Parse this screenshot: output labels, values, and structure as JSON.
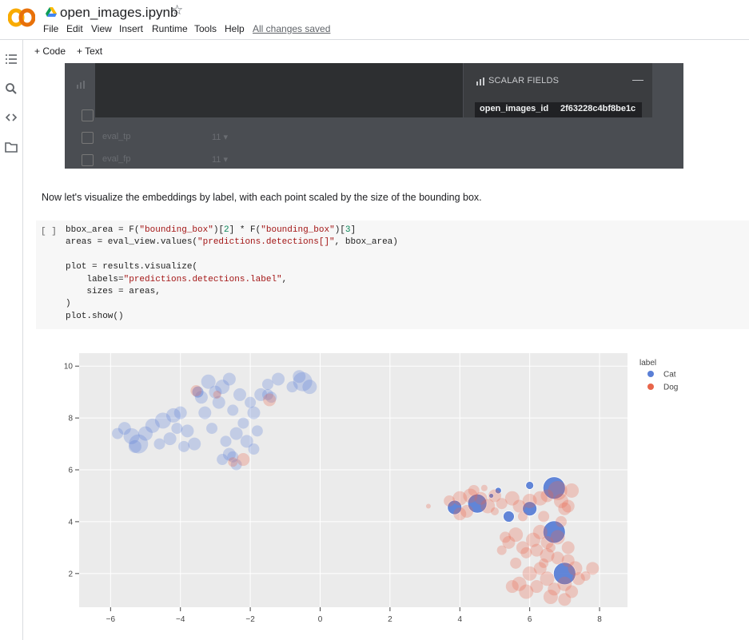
{
  "header": {
    "title": "open_images.ipynb",
    "menu": [
      "File",
      "Edit",
      "View",
      "Insert",
      "Runtime",
      "Tools",
      "Help"
    ],
    "saved_status": "All changes saved"
  },
  "toolbar": {
    "code_label": "+ Code",
    "text_label": "+ Text"
  },
  "sidebar": {
    "icons": [
      "toc-icon",
      "search-icon",
      "code-snippets-icon",
      "files-icon"
    ]
  },
  "output_panel": {
    "scalar_title": "SCALAR FIELDS",
    "scalar_key": "open_images_id",
    "scalar_value": "2f63228c4bf8be1c",
    "fields": [
      {
        "name": "eval_tp",
        "count": "11 ▾"
      },
      {
        "name": "eval_fp",
        "count": "11 ▾"
      }
    ]
  },
  "markdown": {
    "text": "Now let's visualize the embeddings by label, with each point scaled by the size of the bounding box."
  },
  "code_cell": {
    "exec_count": "[ ]",
    "lines": [
      "bbox_area = F(\"bounding_box\")[2] * F(\"bounding_box\")[3]",
      "areas = eval_view.values(\"predictions.detections[]\", bbox_area)",
      "",
      "plot = results.visualize(",
      "    labels=\"predictions.detections.label\",",
      "    sizes = areas,",
      ")",
      "plot.show()"
    ]
  },
  "chart_data": {
    "type": "scatter",
    "xlim": [
      -6.9,
      8.8
    ],
    "ylim": [
      0.7,
      10.5
    ],
    "xticks": [
      -6,
      -4,
      -2,
      0,
      2,
      4,
      6,
      8
    ],
    "yticks": [
      2,
      4,
      6,
      8,
      10
    ],
    "grid": true,
    "legend": {
      "title": "label",
      "placement": "top-right"
    },
    "series": [
      {
        "name": "Cat",
        "color": "#5a7fd6",
        "points": [
          [
            -5.4,
            7.3,
            10
          ],
          [
            -5.2,
            7.0,
            12
          ],
          [
            -5.0,
            7.4,
            9
          ],
          [
            -5.6,
            7.6,
            8
          ],
          [
            -4.8,
            7.7,
            9
          ],
          [
            -4.5,
            7.9,
            10
          ],
          [
            -4.2,
            8.1,
            9
          ],
          [
            -4.0,
            8.2,
            8
          ],
          [
            -4.3,
            7.2,
            8
          ],
          [
            -4.6,
            7.0,
            7
          ],
          [
            -5.8,
            7.4,
            7
          ],
          [
            -5.3,
            6.9,
            8
          ],
          [
            -3.8,
            7.5,
            8
          ],
          [
            -3.6,
            7.0,
            8
          ],
          [
            -3.9,
            6.9,
            7
          ],
          [
            -4.1,
            7.6,
            7
          ],
          [
            -3.4,
            8.8,
            8
          ],
          [
            -3.2,
            9.4,
            9
          ],
          [
            -3.0,
            9.0,
            8
          ],
          [
            -2.8,
            9.2,
            9
          ],
          [
            -2.6,
            9.5,
            8
          ],
          [
            -3.5,
            9.0,
            7
          ],
          [
            -2.9,
            8.6,
            8
          ],
          [
            -2.5,
            8.3,
            7
          ],
          [
            -2.3,
            8.9,
            8
          ],
          [
            -2.0,
            8.6,
            7
          ],
          [
            -1.7,
            8.9,
            8
          ],
          [
            -1.5,
            9.3,
            7
          ],
          [
            -1.2,
            9.5,
            8
          ],
          [
            -0.8,
            9.2,
            7
          ],
          [
            -0.5,
            9.4,
            12
          ],
          [
            -0.3,
            9.2,
            9
          ],
          [
            -0.6,
            9.6,
            8
          ],
          [
            -1.4,
            8.8,
            7
          ],
          [
            -1.9,
            8.2,
            8
          ],
          [
            -2.2,
            7.8,
            7
          ],
          [
            -2.4,
            7.4,
            8
          ],
          [
            -2.7,
            7.1,
            7
          ],
          [
            -3.1,
            7.6,
            7
          ],
          [
            -3.3,
            8.2,
            8
          ],
          [
            -2.6,
            6.6,
            8
          ],
          [
            -2.4,
            6.2,
            7
          ],
          [
            -2.8,
            6.4,
            7
          ],
          [
            -2.1,
            7.1,
            8
          ],
          [
            -1.9,
            6.8,
            7
          ],
          [
            -1.8,
            7.5,
            7
          ],
          [
            -3.5,
            9.0,
            7
          ],
          [
            -2.5,
            6.5,
            7
          ],
          [
            -1.5,
            8.9,
            7
          ],
          [
            4.5,
            4.7,
            12
          ],
          [
            6.7,
            5.3,
            14
          ],
          [
            6.7,
            3.6,
            14
          ],
          [
            7.0,
            2.0,
            14
          ],
          [
            6.0,
            4.5,
            9
          ],
          [
            5.4,
            4.2,
            7
          ],
          [
            3.85,
            4.55,
            9
          ],
          [
            6.0,
            5.4,
            5
          ],
          [
            5.1,
            5.2,
            4
          ],
          [
            4.9,
            5.0,
            3
          ]
        ]
      },
      {
        "name": "Dog",
        "color": "#e8654a",
        "points": [
          [
            4.0,
            4.9,
            9
          ],
          [
            4.3,
            5.0,
            9
          ],
          [
            4.6,
            4.9,
            8
          ],
          [
            4.2,
            4.4,
            8
          ],
          [
            4.8,
            4.6,
            9
          ],
          [
            5.0,
            5.0,
            8
          ],
          [
            5.5,
            4.9,
            9
          ],
          [
            5.7,
            4.6,
            8
          ],
          [
            6.0,
            4.8,
            9
          ],
          [
            6.3,
            4.9,
            9
          ],
          [
            6.5,
            5.0,
            8
          ],
          [
            6.9,
            4.8,
            9
          ],
          [
            7.1,
            4.6,
            8
          ],
          [
            7.2,
            5.2,
            9
          ],
          [
            4.0,
            4.3,
            8
          ],
          [
            3.7,
            4.8,
            7
          ],
          [
            4.4,
            5.2,
            7
          ],
          [
            5.2,
            4.7,
            7
          ],
          [
            6.8,
            5.2,
            12
          ],
          [
            7.0,
            4.5,
            8
          ],
          [
            5.4,
            3.2,
            8
          ],
          [
            5.6,
            3.5,
            9
          ],
          [
            5.8,
            3.0,
            8
          ],
          [
            6.1,
            3.3,
            9
          ],
          [
            6.3,
            3.6,
            9
          ],
          [
            6.5,
            3.2,
            8
          ],
          [
            6.8,
            3.4,
            9
          ],
          [
            7.1,
            3.0,
            8
          ],
          [
            5.9,
            2.8,
            7
          ],
          [
            6.2,
            2.9,
            8
          ],
          [
            6.5,
            2.7,
            9
          ],
          [
            6.8,
            2.6,
            8
          ],
          [
            7.1,
            2.5,
            8
          ],
          [
            7.3,
            2.2,
            9
          ],
          [
            6.3,
            2.2,
            8
          ],
          [
            6.0,
            2.0,
            9
          ],
          [
            5.7,
            1.6,
            9
          ],
          [
            5.9,
            1.3,
            9
          ],
          [
            6.2,
            1.5,
            8
          ],
          [
            6.5,
            1.8,
            9
          ],
          [
            6.7,
            1.4,
            8
          ],
          [
            7.0,
            1.6,
            9
          ],
          [
            7.2,
            1.3,
            8
          ],
          [
            7.4,
            1.8,
            8
          ],
          [
            7.8,
            2.2,
            8
          ],
          [
            6.6,
            1.1,
            9
          ],
          [
            7.0,
            1.0,
            8
          ],
          [
            5.5,
            1.5,
            8
          ],
          [
            5.3,
            3.4,
            7
          ],
          [
            5.6,
            2.4,
            7
          ],
          [
            5.2,
            2.9,
            6
          ],
          [
            6.4,
            4.2,
            7
          ],
          [
            6.9,
            4.0,
            7
          ],
          [
            3.1,
            4.6,
            3
          ],
          [
            4.7,
            5.3,
            4
          ],
          [
            5.0,
            4.4,
            5
          ],
          [
            6.4,
            2.4,
            6
          ],
          [
            7.6,
            1.9,
            6
          ],
          [
            5.8,
            4.2,
            6
          ],
          [
            6.6,
            3.0,
            6
          ],
          [
            -2.2,
            6.4,
            8
          ],
          [
            -2.5,
            6.3,
            6
          ],
          [
            -1.45,
            8.7,
            8
          ],
          [
            -3.55,
            9.05,
            7
          ],
          [
            -2.95,
            8.9,
            5
          ]
        ]
      }
    ]
  }
}
